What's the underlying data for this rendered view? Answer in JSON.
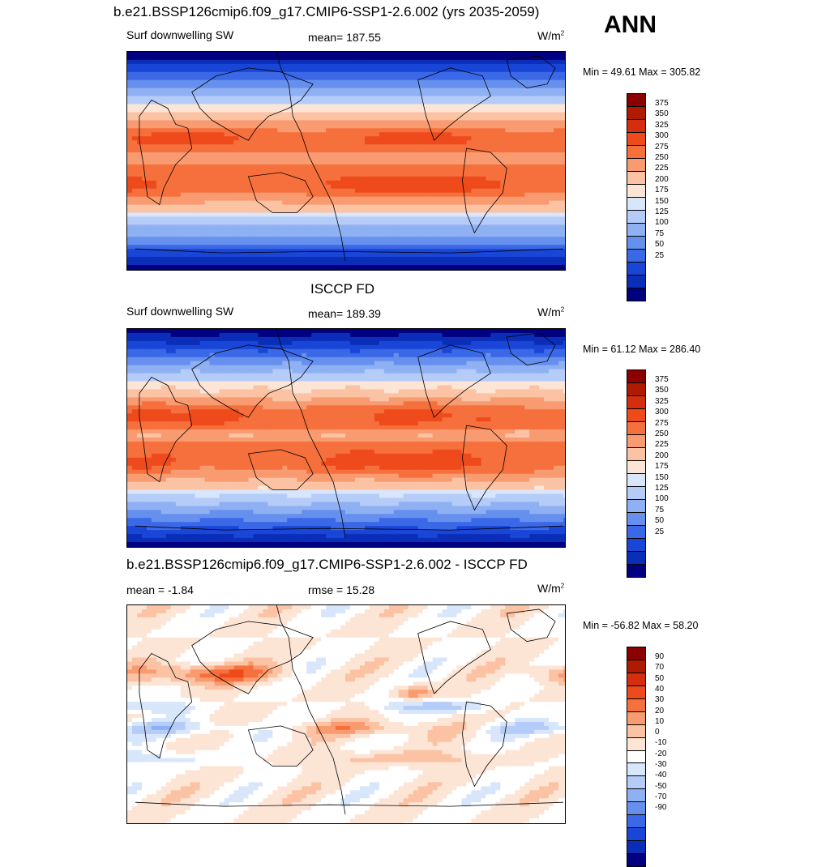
{
  "season": "ANN",
  "panels": [
    {
      "title": "b.e21.BSSP126cmip6.f09_g17.CMIP6-SSP1-2.6.002 (yrs 2035-2059)",
      "left_label": "Surf downwelling SW",
      "center_label": "mean= 187.55",
      "units": "W/m",
      "units_sup": "2",
      "minmax": "Min =  49.61 Max = 305.82",
      "colorbar": {
        "levels": [
          "375",
          "350",
          "325",
          "300",
          "275",
          "250",
          "225",
          "200",
          "175",
          "150",
          "125",
          "100",
          "75",
          "50",
          "25"
        ]
      }
    },
    {
      "title": "ISCCP FD",
      "left_label": "Surf downwelling SW",
      "center_label": "mean= 189.39",
      "units": "W/m",
      "units_sup": "2",
      "minmax": "Min =  61.12 Max = 286.40",
      "colorbar": {
        "levels": [
          "375",
          "350",
          "325",
          "300",
          "275",
          "250",
          "225",
          "200",
          "175",
          "150",
          "125",
          "100",
          "75",
          "50",
          "25"
        ]
      }
    },
    {
      "title": "b.e21.BSSP126cmip6.f09_g17.CMIP6-SSP1-2.6.002 - ISCCP FD",
      "left_label": "mean =  -1.84",
      "center_label": "rmse =  15.28",
      "units": "W/m",
      "units_sup": "2",
      "minmax": "Min = -56.82 Max =  58.20",
      "colorbar": {
        "levels": [
          "90",
          "70",
          "50",
          "40",
          "30",
          "20",
          "10",
          "0",
          "-10",
          "-20",
          "-30",
          "-40",
          "-50",
          "-70",
          "-90"
        ]
      }
    }
  ],
  "colors": {
    "palette": [
      "#8b0000",
      "#b01a00",
      "#d42e0e",
      "#ef4a1c",
      "#f6703d",
      "#f99b70",
      "#fbc3a4",
      "#fde5d6",
      "#ffffff",
      "#d8e6fb",
      "#b5ccf8",
      "#8fb0f3",
      "#6690ee",
      "#3b68e6",
      "#1a46d8",
      "#0a2eb8",
      "#001590",
      "#000080"
    ],
    "land_outline": "#000000"
  }
}
